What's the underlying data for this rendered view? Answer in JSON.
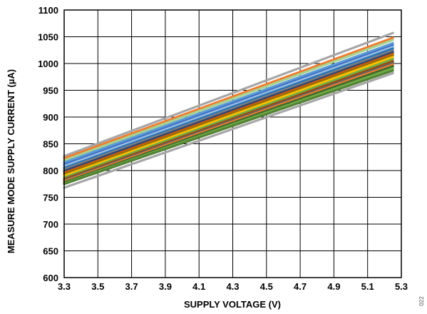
{
  "figure_id": "022",
  "chart_data": {
    "type": "line",
    "xlabel": "SUPPLY VOLTAGE (V)",
    "ylabel": "MEASURE MODE SUPPLY CURRENT (µA)",
    "xlim": [
      3.3,
      5.3
    ],
    "ylim": [
      600,
      1100
    ],
    "x_ticks": [
      3.3,
      3.5,
      3.7,
      3.9,
      4.1,
      4.3,
      4.5,
      4.7,
      4.9,
      5.1,
      5.3
    ],
    "x_tick_labels": [
      "3.3",
      "3.5",
      "3.7",
      "3.9",
      "4.1",
      "4.3",
      "4.5",
      "4.7",
      "4.9",
      "5.1",
      "5.3"
    ],
    "y_ticks": [
      600,
      650,
      700,
      750,
      800,
      850,
      900,
      950,
      1000,
      1050,
      1100
    ],
    "y_tick_labels": [
      "600",
      "650",
      "700",
      "750",
      "800",
      "850",
      "900",
      "950",
      "1000",
      "1050",
      "1100"
    ],
    "grid": true,
    "legend": "none",
    "series": [
      {
        "color": "#a6a6a6",
        "x": [
          3.3,
          5.25
        ],
        "y": [
          827,
          1057
        ]
      },
      {
        "color": "#ed7d31",
        "x": [
          3.3,
          5.25
        ],
        "y": [
          823,
          1048
        ]
      },
      {
        "color": "#a9d18e",
        "x": [
          3.3,
          5.25
        ],
        "y": [
          819,
          1044
        ]
      },
      {
        "color": "#5b9bd5",
        "x": [
          3.3,
          5.25
        ],
        "y": [
          815,
          1038
        ]
      },
      {
        "color": "#4472c4",
        "x": [
          3.3,
          5.25
        ],
        "y": [
          811,
          1034
        ]
      },
      {
        "color": "#9dc3e6",
        "x": [
          3.3,
          5.25
        ],
        "y": [
          808,
          1031
        ]
      },
      {
        "color": "#2e75b6",
        "x": [
          3.3,
          5.25
        ],
        "y": [
          805,
          1028
        ]
      },
      {
        "color": "#7f7f7f",
        "x": [
          3.3,
          5.25
        ],
        "y": [
          802,
          1024
        ]
      },
      {
        "color": "#264478",
        "x": [
          3.3,
          5.25
        ],
        "y": [
          799,
          1021
        ]
      },
      {
        "color": "#c55a11",
        "x": [
          3.3,
          5.25
        ],
        "y": [
          796,
          1018
        ]
      },
      {
        "color": "#997300",
        "x": [
          3.3,
          5.25
        ],
        "y": [
          793,
          1015
        ]
      },
      {
        "color": "#ffc000",
        "x": [
          3.3,
          5.25
        ],
        "y": [
          790,
          1012
        ]
      },
      {
        "color": "#70ad47",
        "x": [
          3.3,
          5.25
        ],
        "y": [
          787,
          1008
        ]
      },
      {
        "color": "#9e480e",
        "x": [
          3.3,
          5.25
        ],
        "y": [
          784,
          1004
        ]
      },
      {
        "color": "#636363",
        "x": [
          3.3,
          5.25
        ],
        "y": [
          782,
          1001
        ]
      },
      {
        "color": "#ed7d31",
        "x": [
          3.3,
          5.25
        ],
        "y": [
          780,
          998
        ]
      },
      {
        "color": "#43682b",
        "x": [
          3.3,
          5.25
        ],
        "y": [
          778,
          995
        ]
      },
      {
        "color": "#70ad47",
        "x": [
          3.3,
          5.25
        ],
        "y": [
          776,
          991
        ]
      },
      {
        "color": "#548235",
        "x": [
          3.3,
          5.25
        ],
        "y": [
          775,
          987
        ]
      },
      {
        "color": "#a6a6a6",
        "x": [
          3.3,
          5.25
        ],
        "y": [
          768,
          982
        ]
      }
    ]
  }
}
